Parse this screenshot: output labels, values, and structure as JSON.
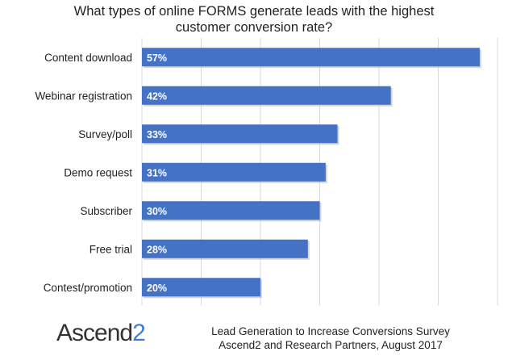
{
  "chart_data": {
    "type": "bar",
    "orientation": "horizontal",
    "title": "What types of online FORMS generate leads with the highest customer conversion rate?",
    "categories": [
      "Content download",
      "Webinar registration",
      "Survey/poll",
      "Demo request",
      "Subscriber",
      "Free trial",
      "Contest/promotion"
    ],
    "values": [
      57,
      42,
      33,
      31,
      30,
      28,
      20
    ],
    "value_labels": [
      "57%",
      "42%",
      "33%",
      "31%",
      "30%",
      "28%",
      "20%"
    ],
    "xlim": [
      0,
      60
    ],
    "grid": true,
    "bar_color": "#4472c4",
    "legend": "none"
  },
  "footer": {
    "logo_text_main": "Ascend",
    "logo_text_accent": "2",
    "source_line1": "Lead Generation to Increase Conversions Survey",
    "source_line2": "Ascend2 and Research Partners, August 2017"
  }
}
